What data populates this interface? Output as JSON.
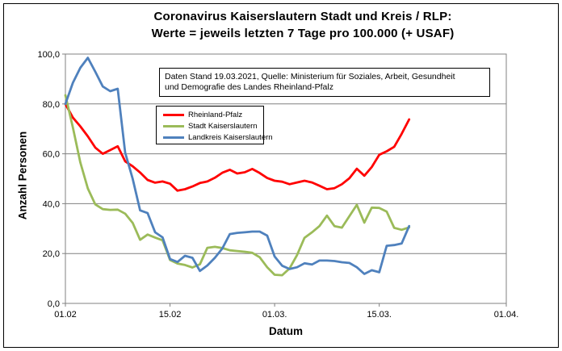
{
  "title_line1": "Coronavirus Kaiserslautern Stadt und Kreis / RLP:",
  "title_line2": "Werte = jeweils letzten 7 Tage pro 100.000 (+ USAF)",
  "annotation": {
    "line1": "Daten Stand 19.03.2021, Quelle: Ministerium für Soziales, Arbeit, Gesundheit",
    "line2": "und Demografie des Landes Rheinland-Pfalz"
  },
  "chart_data": {
    "type": "line",
    "title": "Coronavirus Kaiserslautern Stadt und Kreis / RLP: Werte = jeweils letzten 7 Tage pro 100.000 (+ USAF)",
    "xlabel": "Datum",
    "ylabel": "Anzahl Personen",
    "ylim": [
      0,
      100
    ],
    "x_axis_days_total": 59,
    "x_unit": "days since 01.02.2021, one point per day, last point 19.03.2021",
    "grid": "horizontal",
    "legend_position": "inside-upper-left",
    "y_ticks": [
      {
        "label": "100,0",
        "value": 100
      },
      {
        "label": "80,0",
        "value": 80
      },
      {
        "label": "60,0",
        "value": 60
      },
      {
        "label": "40,0",
        "value": 40
      },
      {
        "label": "20,0",
        "value": 20
      },
      {
        "label": "0,0",
        "value": 0
      }
    ],
    "x_ticks": [
      {
        "label": "01.02",
        "day": 0
      },
      {
        "label": "15.02",
        "day": 14
      },
      {
        "label": "01.03.",
        "day": 28
      },
      {
        "label": "15.03.",
        "day": 42
      },
      {
        "label": "01.04.",
        "day": 59
      }
    ],
    "series": [
      {
        "name": "Rheinland-Pfalz",
        "color": "#FF0000",
        "values": [
          80.0,
          74.5,
          71.0,
          67.0,
          62.5,
          60.0,
          61.5,
          63.0,
          57.0,
          55.0,
          52.5,
          49.5,
          48.4,
          48.9,
          48.0,
          45.2,
          45.8,
          46.9,
          48.3,
          48.9,
          50.4,
          52.4,
          53.6,
          52.1,
          52.6,
          53.9,
          52.3,
          50.3,
          49.2,
          48.8,
          47.8,
          48.5,
          49.2,
          48.5,
          47.2,
          45.8,
          46.2,
          47.8,
          50.2,
          54.0,
          51.2,
          54.7,
          59.6,
          61.0,
          62.8,
          68.0,
          73.8
        ]
      },
      {
        "name": "Stadt Kaiserslautern",
        "color": "#9BBB59",
        "values": [
          83.5,
          70.5,
          56.5,
          46.1,
          39.7,
          37.8,
          37.5,
          37.6,
          36.0,
          32.3,
          25.5,
          27.6,
          26.4,
          25.3,
          17.4,
          16.0,
          15.4,
          14.4,
          15.7,
          22.3,
          22.7,
          22.2,
          21.3,
          21.0,
          20.7,
          20.3,
          18.5,
          14.5,
          11.5,
          11.3,
          14.0,
          19.4,
          26.3,
          28.5,
          31.0,
          35.2,
          31.0,
          30.4,
          35.0,
          39.5,
          32.4,
          38.4,
          38.3,
          36.8,
          30.3,
          29.5,
          30.5
        ]
      },
      {
        "name": "Landkreis Kaiserslautern",
        "color": "#4F81BD",
        "values": [
          80.0,
          88.5,
          94.5,
          98.5,
          92.9,
          87.0,
          85.1,
          86.1,
          60.5,
          50.0,
          37.3,
          36.2,
          28.5,
          26.5,
          17.8,
          16.6,
          19.1,
          18.3,
          13.0,
          15.2,
          18.3,
          22.0,
          27.8,
          28.3,
          28.5,
          28.8,
          28.8,
          27.2,
          18.8,
          15.1,
          13.8,
          14.5,
          16.1,
          15.6,
          17.2,
          17.2,
          17.0,
          16.5,
          16.2,
          14.5,
          11.8,
          13.3,
          12.5,
          23.1,
          23.4,
          24.0,
          31.0
        ]
      }
    ]
  }
}
